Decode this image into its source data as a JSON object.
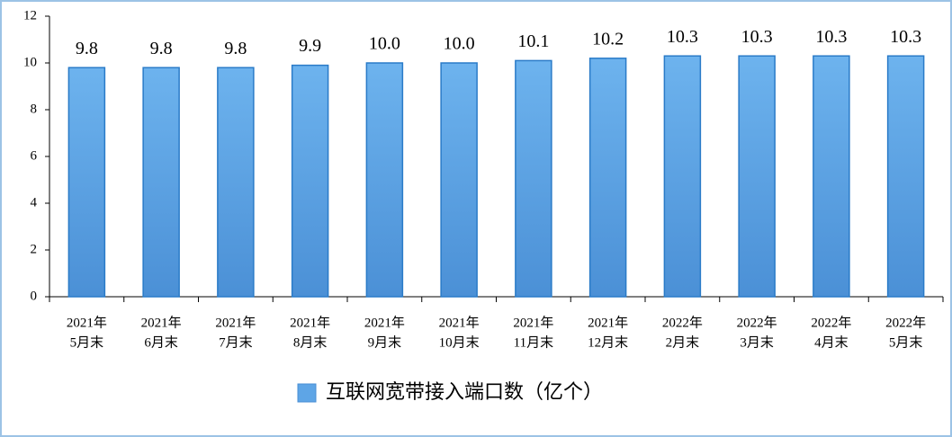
{
  "chart_data": {
    "type": "bar",
    "categories": [
      [
        "2021年",
        "5月末"
      ],
      [
        "2021年",
        "6月末"
      ],
      [
        "2021年",
        "7月末"
      ],
      [
        "2021年",
        "8月末"
      ],
      [
        "2021年",
        "9月末"
      ],
      [
        "2021年",
        "10月末"
      ],
      [
        "2021年",
        "11月末"
      ],
      [
        "2021年",
        "12月末"
      ],
      [
        "2022年",
        "2月末"
      ],
      [
        "2022年",
        "3月末"
      ],
      [
        "2022年",
        "4月末"
      ],
      [
        "2022年",
        "5月末"
      ]
    ],
    "series": [
      {
        "name": "互联网宽带接入端口数（亿个）",
        "color": "#5ea5e6",
        "values": [
          9.8,
          9.8,
          9.8,
          9.9,
          10.0,
          10.0,
          10.1,
          10.2,
          10.3,
          10.3,
          10.3,
          10.3
        ],
        "value_labels": [
          "9.8",
          "9.8",
          "9.8",
          "9.9",
          "10.0",
          "10.0",
          "10.1",
          "10.2",
          "10.3",
          "10.3",
          "10.3",
          "10.3"
        ]
      }
    ],
    "ylim": [
      0,
      12
    ],
    "yticks": [
      0,
      2,
      4,
      6,
      8,
      10,
      12
    ],
    "grid": false
  }
}
